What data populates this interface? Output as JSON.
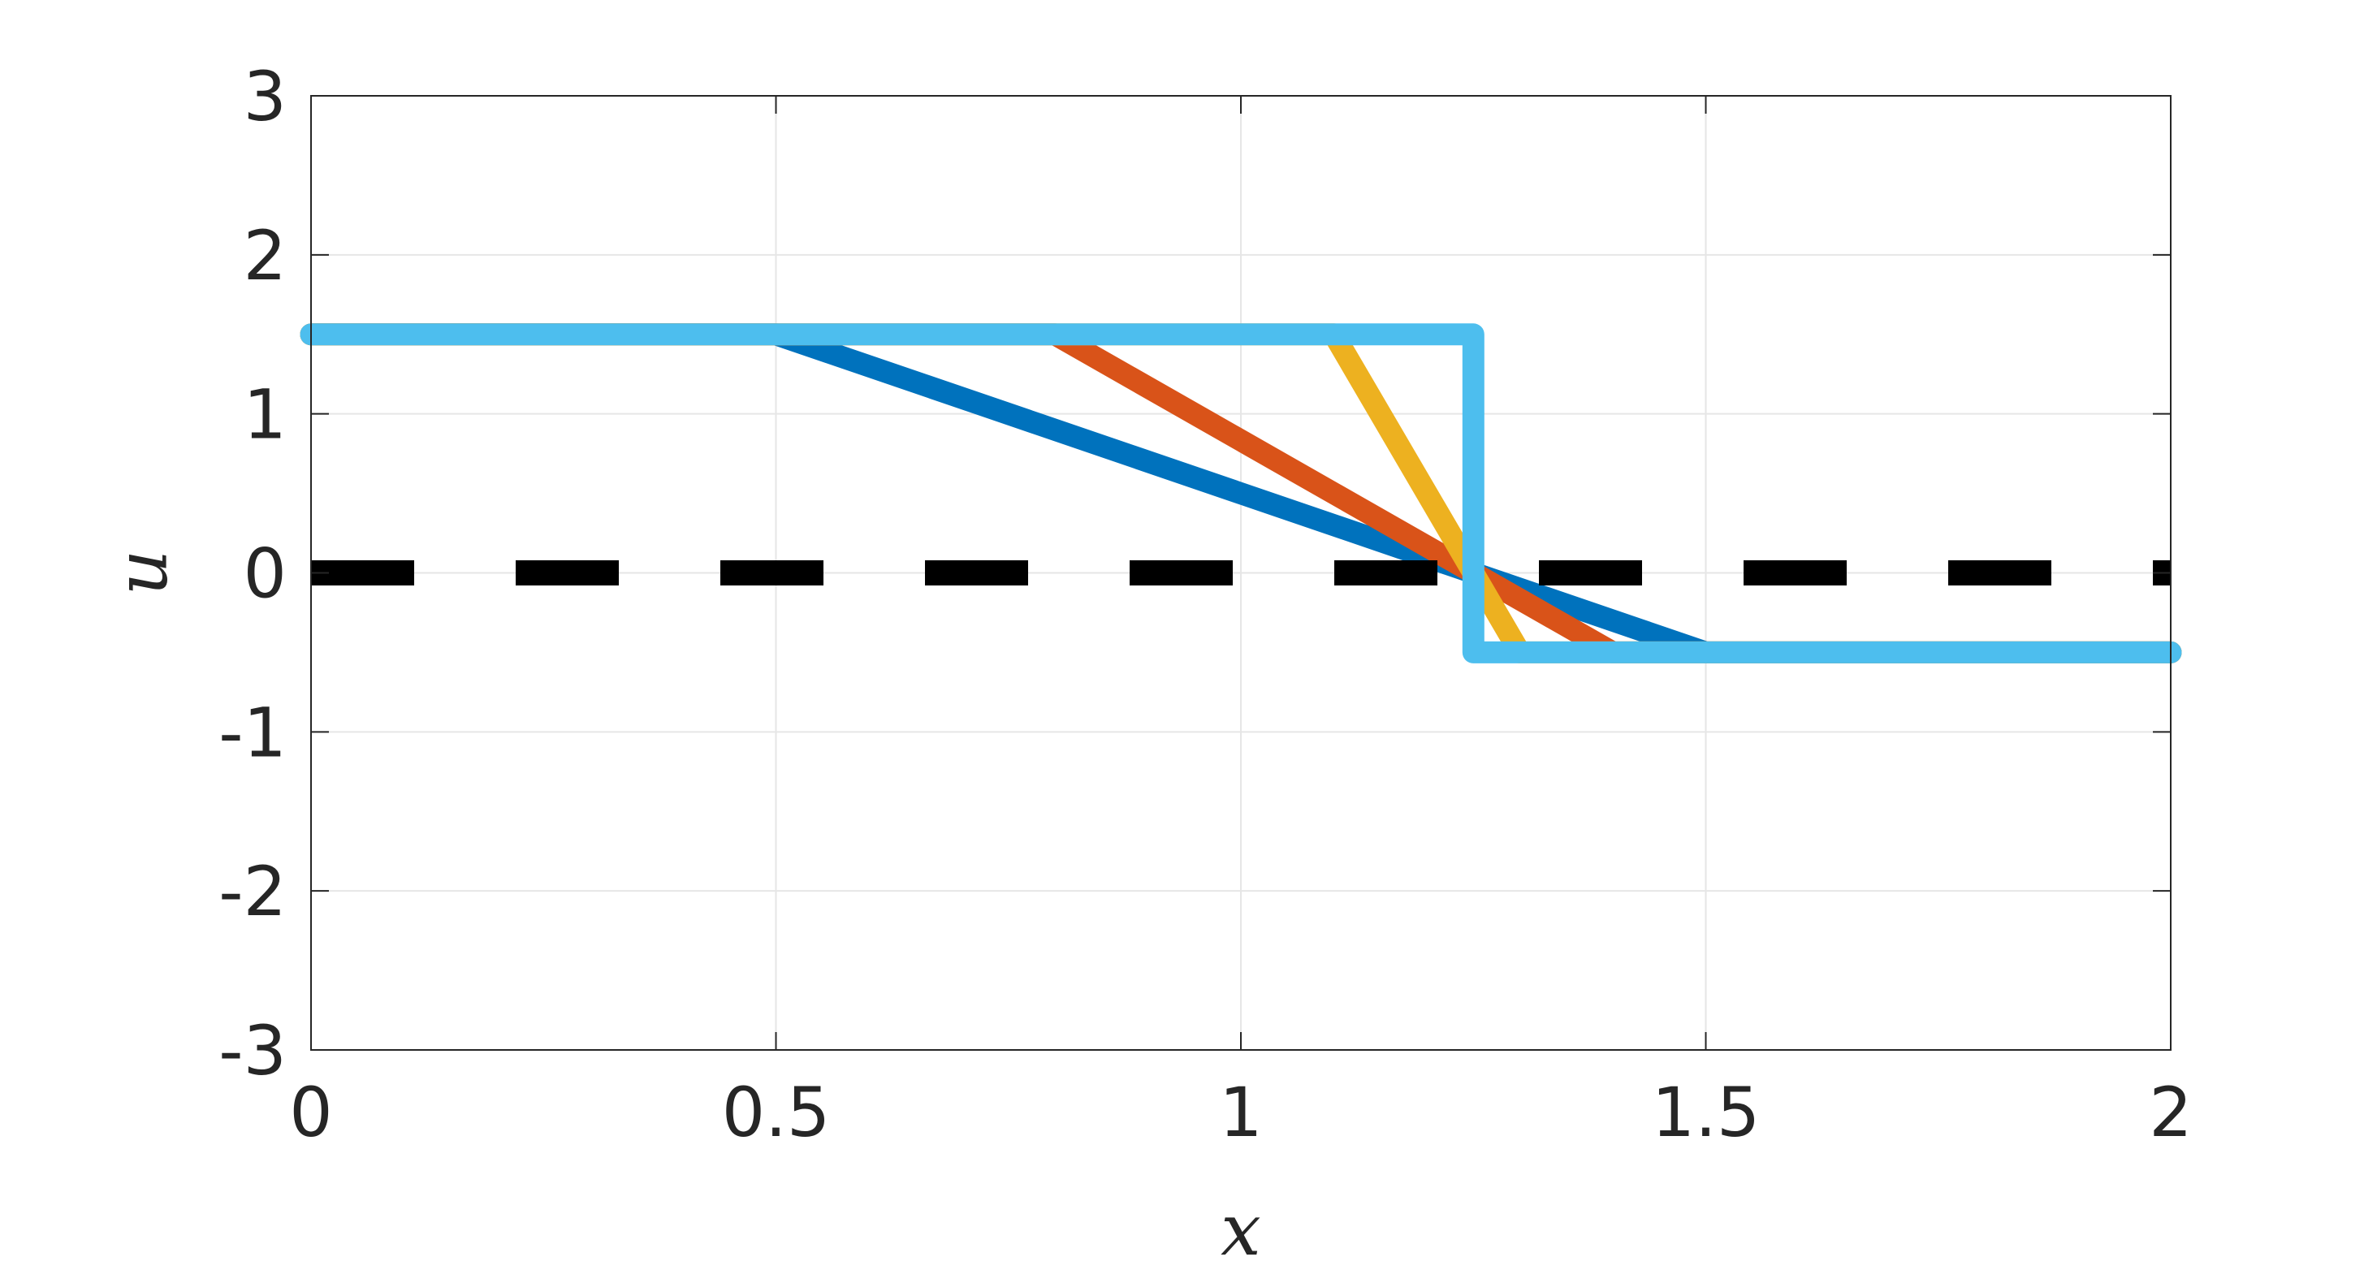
{
  "chart_data": {
    "type": "line",
    "title": "",
    "xlabel": "x",
    "ylabel": "u",
    "xlim": [
      0,
      2
    ],
    "ylim": [
      -3,
      3
    ],
    "xticks": [
      0,
      0.5,
      1,
      1.5,
      2
    ],
    "xtick_labels": [
      "0",
      "0.5",
      "1",
      "1.5",
      "2"
    ],
    "yticks": [
      -3,
      -2,
      -1,
      0,
      1,
      2,
      3
    ],
    "ytick_labels": [
      "-3",
      "-2",
      "-1",
      "0",
      "1",
      "2",
      "3"
    ],
    "grid": true,
    "legend": "none",
    "series": [
      {
        "color": "#0072BD",
        "line_style": "solid",
        "x": [
          0,
          0.5,
          1.5,
          2
        ],
        "y": [
          1.5,
          1.5,
          -0.5,
          -0.5
        ]
      },
      {
        "color": "#D95319",
        "line_style": "solid",
        "x": [
          0,
          0.8,
          1.4,
          2
        ],
        "y": [
          1.5,
          1.5,
          -0.5,
          -0.5
        ]
      },
      {
        "color": "#EDB120",
        "line_style": "solid",
        "x": [
          0,
          1.1,
          1.3,
          2
        ],
        "y": [
          1.5,
          1.5,
          -0.5,
          -0.5
        ]
      },
      {
        "color": "#4DBEEE",
        "line_style": "solid",
        "x": [
          0,
          1.25,
          1.25,
          2
        ],
        "y": [
          1.5,
          1.5,
          -0.5,
          -0.5
        ]
      },
      {
        "color": "#000000",
        "line_style": "dashed",
        "x": [
          0,
          2
        ],
        "y": [
          0,
          0
        ]
      }
    ]
  }
}
